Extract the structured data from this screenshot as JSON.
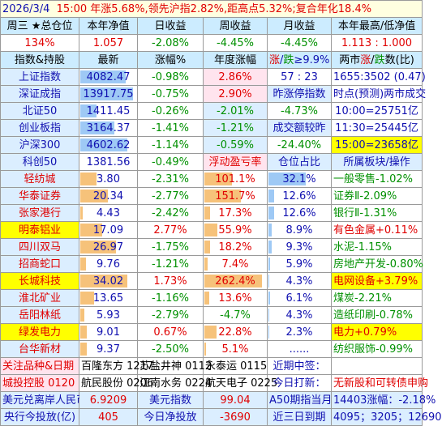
{
  "title": {
    "date": "2026/3/4",
    "summary": "15:00 年涨5.68%,领先沪指2.82%,距高点5.32%;复合年化18.4%"
  },
  "account": {
    "headers": [
      "周三 ★总仓位",
      "本年净值",
      "日收益",
      "周收益",
      "月收益",
      "本年最高/低净值"
    ],
    "values": [
      "134%",
      "1.057",
      "-2.08%",
      "-4.45%",
      "-4.45%",
      "1.113 : 1.000"
    ]
  },
  "index_header": [
    "指数&持股",
    "最新",
    "涨幅%",
    "年度涨幅",
    "涨/跌≥9.9%",
    "两市涨/跌数(比)"
  ],
  "index_header_parts": {
    "up": "涨",
    "slash": "/",
    "down": "跌",
    "rest": "≥9.9%"
  },
  "indices": [
    {
      "name": "上证指数",
      "price": "4082.47",
      "chg": "-0.98%",
      "ytd": "2.86%",
      "c5": "57 : 23",
      "c6": "1655:3502 (0.47)",
      "pbar": 0.82
    },
    {
      "name": "深证成指",
      "price": "13917.75",
      "chg": "-0.75%",
      "ytd": "2.90%",
      "c5": "昨涨停指数",
      "c6": "时点(预测)两市成交",
      "pbar": 0.95
    },
    {
      "name": "北证50",
      "price": "1411.45",
      "chg": "-0.26%",
      "ytd": "-2.01%",
      "c5": "-4.73%",
      "c6": "10:00=25751亿",
      "pbar": 0.3
    },
    {
      "name": "创业板指",
      "price": "3164.37",
      "chg": "-1.41%",
      "ytd": "-1.21%",
      "c5": "成交额较昨",
      "c6": "11:30=25445亿",
      "pbar": 0.62
    },
    {
      "name": "沪深300",
      "price": "4602.62",
      "chg": "-1.14%",
      "ytd": "-0.59%",
      "c5": "-24.40%",
      "c6": "15:00=23658亿",
      "pbar": 0.85
    },
    {
      "name": "科创50",
      "price": "1381.56",
      "chg": "-0.49%",
      "ytd": "",
      "c5": "",
      "c6": "",
      "pbar": 0.0
    }
  ],
  "holdings_header": {
    "ytd": "浮动盈亏率",
    "pos": "仓位占比",
    "sector": "所属板块/操作"
  },
  "holdings": [
    {
      "name": "轻纺城",
      "price": "3.80",
      "chg": "-2.31%",
      "pnl": "101.1%",
      "pnl_bar": 0.45,
      "pos": "32.1%",
      "pos_bar": 0.62,
      "sector": "一般零售-1.02%",
      "hl": false,
      "sec_hl": false,
      "pricebar": 0.3
    },
    {
      "name": "华泰证券",
      "price": "20.34",
      "chg": "-2.77%",
      "pnl": "151.7%",
      "pnl_bar": 0.6,
      "pos": "12.6%",
      "pos_bar": 0.1,
      "sector": "证券Ⅱ-2.09%",
      "hl": false,
      "sec_hl": false,
      "pricebar": 0.5
    },
    {
      "name": "张家港行",
      "price": "4.43",
      "chg": "-2.42%",
      "pnl": "17.3%",
      "pnl_bar": 0.1,
      "pos": "12.6%",
      "pos_bar": 0.1,
      "sector": "银行Ⅱ-1.31%",
      "hl": false,
      "sec_hl": false,
      "pricebar": 0.05
    },
    {
      "name": "明泰铝业",
      "price": "17.09",
      "chg": "2.77%",
      "pnl": "55.9%",
      "pnl_bar": 0.22,
      "pos": "8.9%",
      "pos_bar": 0.05,
      "sector": "有色金属+0.11%",
      "hl": true,
      "sec_hl": false,
      "pricebar": 0.4
    },
    {
      "name": "四川双马",
      "price": "26.97",
      "chg": "-1.75%",
      "pnl": "18.2%",
      "pnl_bar": 0.1,
      "pos": "9.3%",
      "pos_bar": 0.05,
      "sector": "水泥-1.15%",
      "hl": false,
      "sec_hl": false,
      "pricebar": 0.65
    },
    {
      "name": "招商蛇口",
      "price": "9.76",
      "chg": "-1.21%",
      "pnl": "7.4%",
      "pnl_bar": 0.05,
      "pos": "5.9%",
      "pos_bar": 0.03,
      "sector": "房地产开发-0.80%",
      "hl": false,
      "sec_hl": false,
      "pricebar": 0.1
    },
    {
      "name": "长城科技",
      "price": "34.02",
      "chg": "1.73%",
      "pnl": "262.4%",
      "pnl_bar": 0.95,
      "pos": "4.3%",
      "pos_bar": 0.02,
      "sector": "电网设备+3.79%",
      "hl": true,
      "sec_hl": true,
      "pricebar": 0.85
    },
    {
      "name": "淮北矿业",
      "price": "13.65",
      "chg": "-1.16%",
      "pnl": "13.6%",
      "pnl_bar": 0.08,
      "pos": "6.1%",
      "pos_bar": 0.03,
      "sector": "煤炭-2.21%",
      "hl": false,
      "sec_hl": false,
      "pricebar": 0.25
    },
    {
      "name": "岳阳林纸",
      "price": "5.93",
      "chg": "-2.79%",
      "pnl": "-4.7%",
      "pnl_bar": 0.0,
      "pos": "4.3%",
      "pos_bar": 0.02,
      "sector": "造纸印刷-0.78%",
      "hl": false,
      "sec_hl": false,
      "pricebar": 0.08
    },
    {
      "name": "绿发电力",
      "price": "9.01",
      "chg": "0.67%",
      "pnl": "22.8%",
      "pnl_bar": 0.2,
      "pos": "2.3%",
      "pos_bar": 0.01,
      "sector": "电力+0.79%",
      "hl": true,
      "sec_hl": true,
      "pricebar": 0.12
    },
    {
      "name": "台华新材",
      "price": "9.37",
      "chg": "-2.50%",
      "pnl": "5.1%",
      "pnl_bar": 0.03,
      "pos": "......",
      "pos_bar": 0.0,
      "sector": "纺织服饰-0.99%",
      "hl": false,
      "sec_hl": false,
      "pricebar": 0.12
    }
  ],
  "watch": {
    "label": "关注品种&日期",
    "items": [
      "百隆东方 1217",
      "苏盐井神 0112",
      "永泰运 0115"
    ],
    "label2": "城投控股 0120",
    "items2": [
      "航民股份 0206",
      "江南水务 0224",
      "航天电子 0225"
    ],
    "recent_label": "近期中签：",
    "recent_value": "",
    "today_label": "今日打新：",
    "today_value": "无新股和可转债申购"
  },
  "footer1": {
    "a": "美元兑离岸人民币",
    "b": "6.9209",
    "c": "美元指数",
    "d": "99.04",
    "e": "A50期指当月",
    "f": "14403涨幅：-2.18%"
  },
  "footer2": {
    "a": "央行今投放(亿)",
    "b": "405",
    "c": "今日净投放",
    "d": "-3690",
    "e": "近三日到期",
    "f": "4095；3205；12690"
  },
  "colors": {
    "header_bg": "#ccecff",
    "yellow": "#ffff00",
    "red": "#e00000",
    "green": "#009000",
    "blue": "#1010b0"
  }
}
